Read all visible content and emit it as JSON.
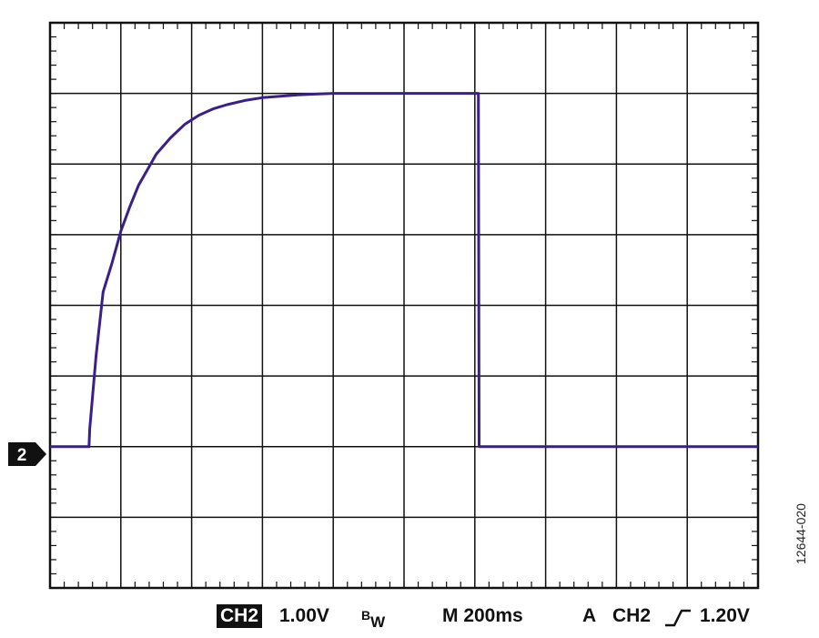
{
  "chart_data": {
    "type": "line",
    "title": "",
    "xlabel": "",
    "ylabel": "",
    "x_unit": "ms",
    "y_unit": "V",
    "grid": true,
    "divisions": {
      "x": 10,
      "y": 8
    },
    "xlim": [
      0,
      2000
    ],
    "ylim": [
      -2,
      6
    ],
    "series": [
      {
        "color": "#3a1f8c",
        "x": [
          0,
          110,
          112,
          130,
          150,
          175,
          200,
          225,
          250,
          275,
          300,
          340,
          380,
          420,
          460,
          500,
          550,
          600,
          650,
          700,
          750,
          800,
          850,
          900,
          950,
          1000,
          1050,
          1100,
          1150,
          1200,
          1210,
          1212,
          1300,
          1400,
          1600,
          1800,
          2000
        ],
        "y": [
          0,
          0,
          0.25,
          1.29,
          2.19,
          2.6,
          3.05,
          3.39,
          3.7,
          3.92,
          4.14,
          4.37,
          4.56,
          4.69,
          4.78,
          4.84,
          4.9,
          4.94,
          4.96,
          4.98,
          4.99,
          5.0,
          5.0,
          5.0,
          5.0,
          5.0,
          5.0,
          5.0,
          5.0,
          5.0,
          5.0,
          0,
          0,
          0,
          0,
          0,
          0
        ]
      }
    ]
  },
  "ground_marker": {
    "label": "2"
  },
  "status_bar": {
    "channel": "CH2",
    "volts_per_div": "1.00V",
    "bw_main": "B",
    "bw_sub": "W",
    "timebase": "M 200ms",
    "trigger_prefix": "A",
    "trigger_channel": "CH2",
    "trigger_slope_icon": "rising-edge-icon",
    "trigger_level": "1.20V"
  },
  "figure_id": "12644-020"
}
